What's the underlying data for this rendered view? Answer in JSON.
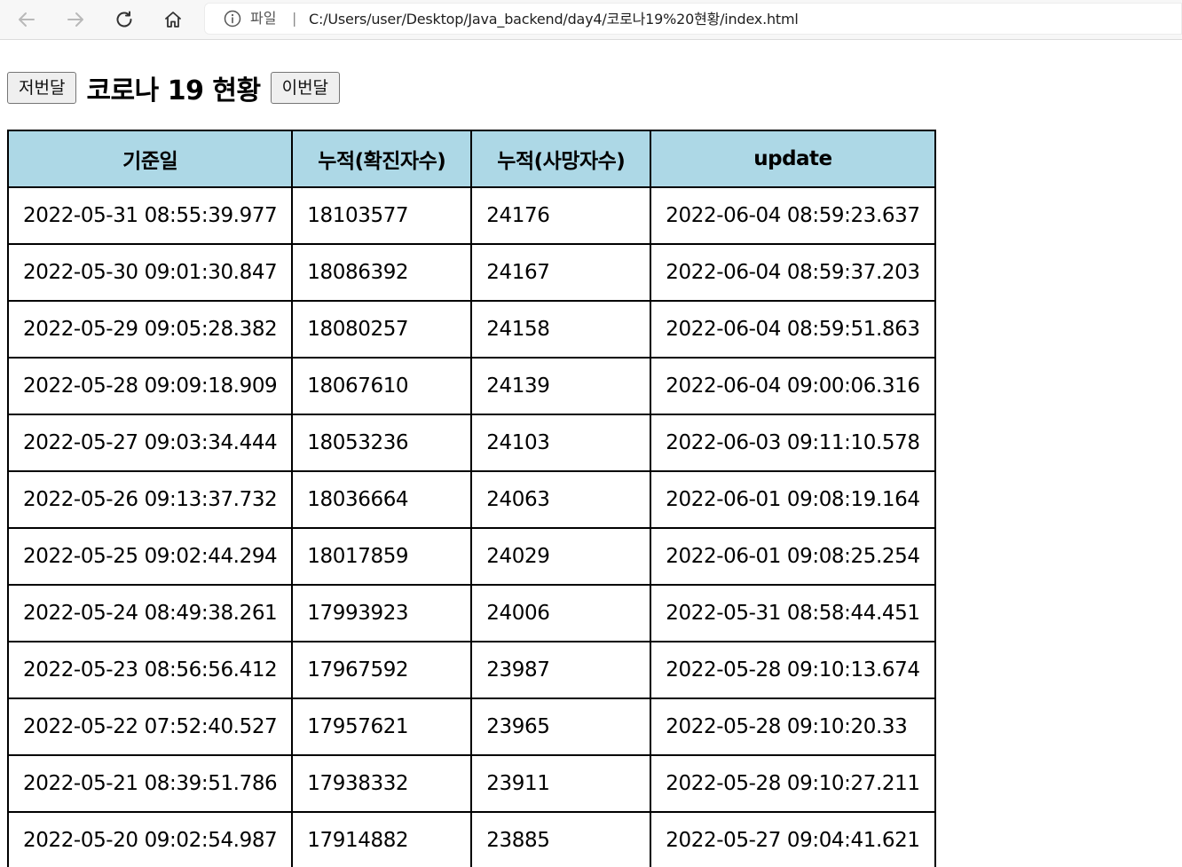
{
  "browser": {
    "scheme_label": "파일",
    "separator": "|",
    "url": "C:/Users/user/Desktop/Java_backend/day4/코로나19%20현황/index.html"
  },
  "header": {
    "prev_button": "저번달",
    "title": "코로나 19 현황",
    "next_button": "이번달"
  },
  "table": {
    "columns": [
      "기준일",
      "누적(확진자수)",
      "누적(사망자수)",
      "update"
    ],
    "rows": [
      [
        "2022-05-31 08:55:39.977",
        "18103577",
        "24176",
        "2022-06-04 08:59:23.637"
      ],
      [
        "2022-05-30 09:01:30.847",
        "18086392",
        "24167",
        "2022-06-04 08:59:37.203"
      ],
      [
        "2022-05-29 09:05:28.382",
        "18080257",
        "24158",
        "2022-06-04 08:59:51.863"
      ],
      [
        "2022-05-28 09:09:18.909",
        "18067610",
        "24139",
        "2022-06-04 09:00:06.316"
      ],
      [
        "2022-05-27 09:03:34.444",
        "18053236",
        "24103",
        "2022-06-03 09:11:10.578"
      ],
      [
        "2022-05-26 09:13:37.732",
        "18036664",
        "24063",
        "2022-06-01 09:08:19.164"
      ],
      [
        "2022-05-25 09:02:44.294",
        "18017859",
        "24029",
        "2022-06-01 09:08:25.254"
      ],
      [
        "2022-05-24 08:49:38.261",
        "17993923",
        "24006",
        "2022-05-31 08:58:44.451"
      ],
      [
        "2022-05-23 08:56:56.412",
        "17967592",
        "23987",
        "2022-05-28 09:10:13.674"
      ],
      [
        "2022-05-22 07:52:40.527",
        "17957621",
        "23965",
        "2022-05-28 09:10:20.33"
      ],
      [
        "2022-05-21 08:39:51.786",
        "17938332",
        "23911",
        "2022-05-28 09:10:27.211"
      ],
      [
        "2022-05-20 09:02:54.987",
        "17914882",
        "23885",
        "2022-05-27 09:04:41.621"
      ]
    ]
  }
}
